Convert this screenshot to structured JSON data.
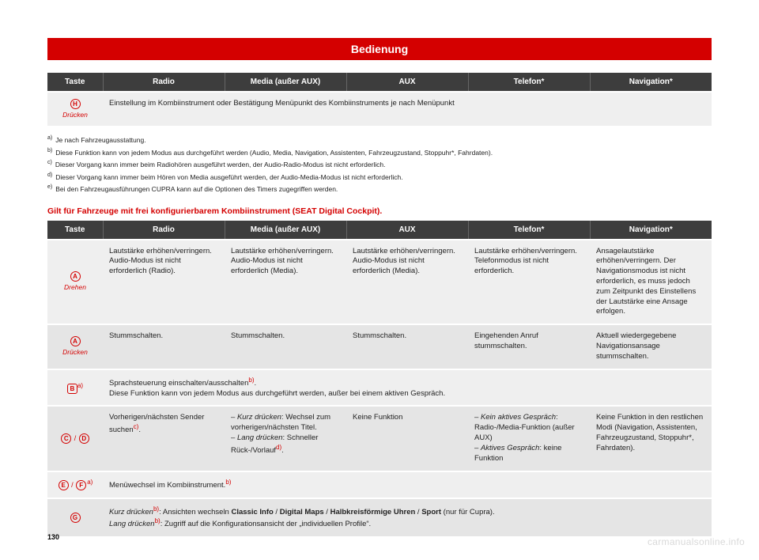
{
  "title": "Bedienung",
  "pagenum": "130",
  "watermark": "carmanualsonline.info",
  "colors": {
    "brand": "#d40000",
    "header_bg": "#3d3d3d",
    "row_a": "#efefef",
    "row_b": "#e5e5e5"
  },
  "headers": [
    "Taste",
    "Radio",
    "Media (außer AUX)",
    "AUX",
    "Telefon*",
    "Navigation*"
  ],
  "table1": {
    "row": {
      "key_letter": "H",
      "key_action": "Drücken",
      "text": "Einstellung im Kombiinstrument oder Bestätigung Menüpunkt des Kombiinstruments je nach Menüpunkt"
    }
  },
  "footnotes": [
    {
      "label": "a)",
      "text": "Je nach Fahrzeugausstattung."
    },
    {
      "label": "b)",
      "text": "Diese Funktion kann von jedem Modus aus durchgeführt werden (Audio, Media, Navigation, Assistenten, Fahrzeugzustand, Stoppuhr*, Fahrdaten)."
    },
    {
      "label": "c)",
      "text": "Dieser Vorgang kann immer beim Radiohören ausgeführt werden, der Audio-Radio-Modus ist nicht erforderlich."
    },
    {
      "label": "d)",
      "text": "Dieser Vorgang kann immer beim Hören von Media ausgeführt werden, der Audio-Media-Modus ist nicht erforderlich."
    },
    {
      "label": "e)",
      "text": "Bei den Fahrzeugausführungen CUPRA kann auf die Optionen des Timers zugegriffen werden."
    }
  ],
  "section_title": "Gilt für Fahrzeuge mit frei konfigurierbarem Kombiinstrument (SEAT Digital Cockpit).",
  "table2": {
    "rows": [
      {
        "key_letters": [
          "A"
        ],
        "key_shape": "circle",
        "key_action": "Drehen",
        "sup": "",
        "sep": "",
        "cells": [
          "Lautstärke erhöhen/verringern. Audio-Modus ist nicht erforderlich (Radio).",
          "Lautstärke erhöhen/verringern. Audio-Modus ist nicht erforderlich (Media).",
          "Lautstärke erhöhen/verringern. Audio-Modus ist nicht erforderlich (Media).",
          "Lautstärke erhöhen/verringern. Telefonmodus ist nicht erforderlich.",
          "Ansagelautstärke erhöhen/verringern. Der Navigationsmodus ist nicht erforderlich, es muss jedoch zum Zeitpunkt des Einstellens der Lautstärke eine Ansage erfolgen."
        ]
      },
      {
        "key_letters": [
          "A"
        ],
        "key_shape": "circle",
        "key_action": "Drücken",
        "sup": "",
        "sep": "",
        "cells": [
          "Stummschalten.",
          "Stummschalten.",
          "Stummschalten.",
          "Eingehenden Anruf stummschalten.",
          "Aktuell wiedergegebene Navigationsansage stummschalten."
        ]
      },
      {
        "key_letters": [
          "B"
        ],
        "key_shape": "square",
        "key_action": "",
        "sup": "a)",
        "sep": "",
        "span": 5,
        "html": "Sprachsteuerung einschalten/ausschalten<span class=\"sup\">b)</span>.<br>Diese Funktion kann von jedem Modus aus durchgeführt werden, außer bei einem aktiven Gespräch."
      },
      {
        "key_letters": [
          "C",
          "D"
        ],
        "key_shape": "circle",
        "key_action": "",
        "sup": "",
        "sep": " / ",
        "cells_html": [
          "Vorherigen/nächsten Sender suchen<span class=\"sup\">c)</span>.",
          "– <em>Kurz drücken</em>: Wechsel zum vorherigen/nächsten Titel.<br>– <em>Lang drücken</em>: Schneller Rück-/Vorlauf<span class=\"sup\">d)</span>.",
          "Keine Funktion",
          "– <em>Kein aktives Gespräch</em>: Radio-/Media-Funktion (außer AUX)<br>– <em>Aktives Gespräch</em>: keine Funktion",
          "Keine Funktion in den restlichen Modi (Navigation, Assistenten, Fahrzeugzustand, Stoppuhr*, Fahrdaten)."
        ]
      },
      {
        "key_letters": [
          "E",
          "F"
        ],
        "key_shape": "circle",
        "key_action": "",
        "sup": "a)",
        "sep": " / ",
        "span": 5,
        "html": "Menüwechsel im Kombiinstrument.<span class=\"sup\">b)</span>"
      },
      {
        "key_letters": [
          "G"
        ],
        "key_shape": "circle",
        "key_action": "",
        "sup": "",
        "sep": "",
        "span": 5,
        "html": "<em>Kurz drücken</em><span class=\"sup\">b)</span>: Ansichten wechseln <b>Classic Info</b> / <b>Digital Maps</b> / <b>Halbkreisförmige Uhren</b> / <b>Sport</b> (nur für Cupra).<br><em>Lang drücken</em><span class=\"sup\">b)</span>: Zugriff auf die Konfigurationsansicht der „individuellen Profile“."
      }
    ]
  }
}
